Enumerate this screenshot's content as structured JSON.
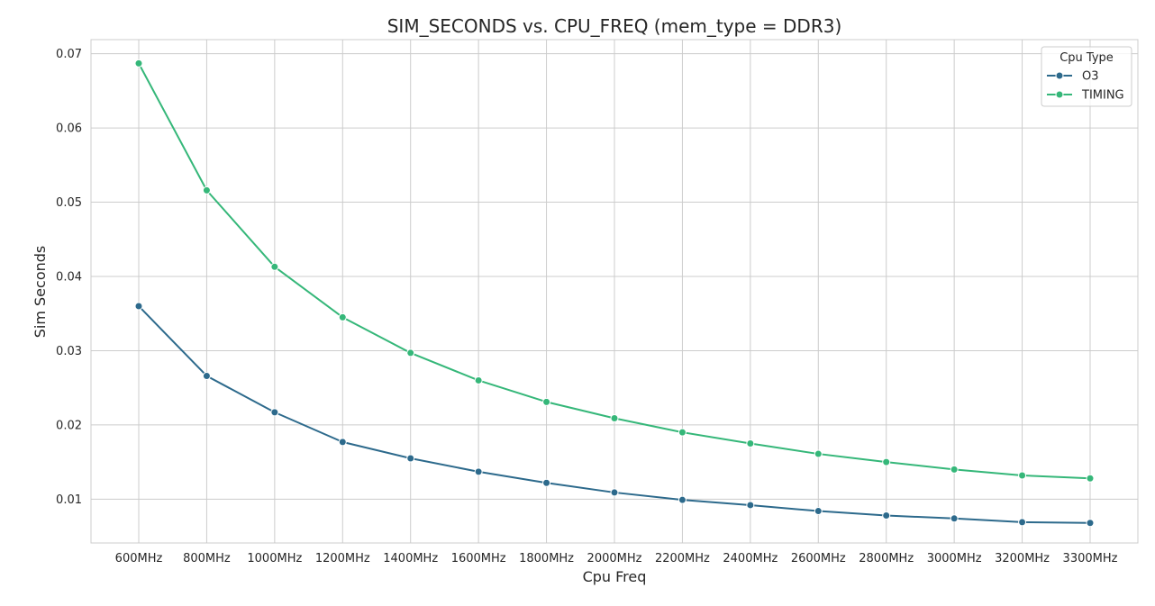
{
  "chart_data": {
    "type": "line",
    "title": "SIM_SECONDS vs. CPU_FREQ (mem_type = DDR3)",
    "xlabel": "Cpu Freq",
    "ylabel": "Sim Seconds",
    "categories": [
      "600MHz",
      "800MHz",
      "1000MHz",
      "1200MHz",
      "1400MHz",
      "1600MHz",
      "1800MHz",
      "2000MHz",
      "2200MHz",
      "2400MHz",
      "2600MHz",
      "2800MHz",
      "3000MHz",
      "3200MHz",
      "3300MHz"
    ],
    "ylim": [
      0.0041,
      0.0719
    ],
    "yticks": [
      0.01,
      0.02,
      0.03,
      0.04,
      0.05,
      0.06,
      0.07
    ],
    "ytick_labels": [
      "0.01",
      "0.02",
      "0.03",
      "0.04",
      "0.05",
      "0.06",
      "0.07"
    ],
    "grid": true,
    "legend": {
      "title": "Cpu Type",
      "placement": "top-right"
    },
    "series": [
      {
        "name": "O3",
        "color": "#2d6a8c",
        "values": [
          0.036,
          0.0266,
          0.0217,
          0.0177,
          0.0155,
          0.0137,
          0.0122,
          0.0109,
          0.0099,
          0.0092,
          0.0084,
          0.0078,
          0.0074,
          0.0069,
          0.0068
        ]
      },
      {
        "name": "TIMING",
        "color": "#35b779",
        "values": [
          0.0687,
          0.0516,
          0.0413,
          0.0345,
          0.0297,
          0.026,
          0.0231,
          0.0209,
          0.019,
          0.0175,
          0.0161,
          0.015,
          0.014,
          0.0132,
          0.0128
        ]
      }
    ]
  }
}
